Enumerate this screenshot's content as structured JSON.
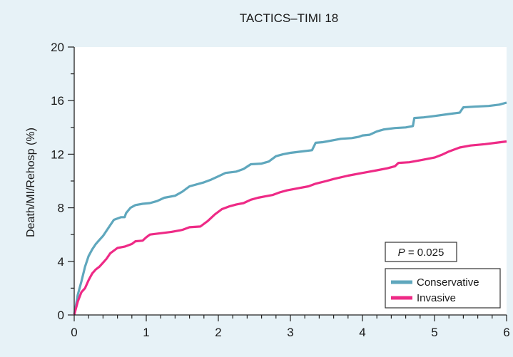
{
  "chart_data": {
    "type": "line",
    "title": "TACTICS–TIMI 18",
    "xlabel": "",
    "ylabel": "Death/MI/Rehosp (%)",
    "xlim": [
      0,
      6
    ],
    "ylim": [
      0,
      20
    ],
    "x_ticks": [
      0,
      1,
      2,
      3,
      4,
      5,
      6
    ],
    "y_ticks": [
      0,
      4,
      8,
      12,
      16,
      20
    ],
    "grid": false,
    "legend_position": "bottom-right",
    "annotation": {
      "italic": "P",
      "text": " = 0.025"
    },
    "series": [
      {
        "name": "Conservative",
        "color": "#5fa7bd",
        "points": [
          [
            0,
            0
          ],
          [
            0.05,
            1.5
          ],
          [
            0.1,
            2.5
          ],
          [
            0.15,
            3.6
          ],
          [
            0.2,
            4.4
          ],
          [
            0.25,
            4.9
          ],
          [
            0.3,
            5.3
          ],
          [
            0.35,
            5.6
          ],
          [
            0.4,
            5.9
          ],
          [
            0.45,
            6.3
          ],
          [
            0.5,
            6.7
          ],
          [
            0.55,
            7.1
          ],
          [
            0.65,
            7.3
          ],
          [
            0.7,
            7.3
          ],
          [
            0.72,
            7.6
          ],
          [
            0.78,
            8.0
          ],
          [
            0.85,
            8.2
          ],
          [
            0.95,
            8.3
          ],
          [
            1.05,
            8.35
          ],
          [
            1.15,
            8.5
          ],
          [
            1.25,
            8.75
          ],
          [
            1.4,
            8.9
          ],
          [
            1.5,
            9.2
          ],
          [
            1.6,
            9.6
          ],
          [
            1.8,
            9.9
          ],
          [
            1.9,
            10.1
          ],
          [
            2.0,
            10.35
          ],
          [
            2.1,
            10.6
          ],
          [
            2.25,
            10.7
          ],
          [
            2.35,
            10.9
          ],
          [
            2.45,
            11.25
          ],
          [
            2.6,
            11.3
          ],
          [
            2.7,
            11.45
          ],
          [
            2.8,
            11.85
          ],
          [
            2.9,
            12.0
          ],
          [
            3.0,
            12.1
          ],
          [
            3.15,
            12.2
          ],
          [
            3.3,
            12.3
          ],
          [
            3.35,
            12.85
          ],
          [
            3.45,
            12.9
          ],
          [
            3.6,
            13.05
          ],
          [
            3.7,
            13.15
          ],
          [
            3.85,
            13.2
          ],
          [
            3.95,
            13.3
          ],
          [
            4.0,
            13.4
          ],
          [
            4.1,
            13.45
          ],
          [
            4.2,
            13.7
          ],
          [
            4.3,
            13.85
          ],
          [
            4.45,
            13.95
          ],
          [
            4.6,
            14.0
          ],
          [
            4.7,
            14.1
          ],
          [
            4.72,
            14.7
          ],
          [
            4.85,
            14.75
          ],
          [
            5.0,
            14.85
          ],
          [
            5.2,
            15.0
          ],
          [
            5.35,
            15.1
          ],
          [
            5.4,
            15.5
          ],
          [
            5.55,
            15.55
          ],
          [
            5.75,
            15.6
          ],
          [
            5.9,
            15.7
          ],
          [
            6.0,
            15.85
          ]
        ]
      },
      {
        "name": "Invasive",
        "color": "#ee2a86",
        "points": [
          [
            0,
            0
          ],
          [
            0.05,
            1.0
          ],
          [
            0.1,
            1.7
          ],
          [
            0.15,
            2.0
          ],
          [
            0.2,
            2.6
          ],
          [
            0.25,
            3.1
          ],
          [
            0.3,
            3.4
          ],
          [
            0.35,
            3.6
          ],
          [
            0.4,
            3.9
          ],
          [
            0.45,
            4.2
          ],
          [
            0.5,
            4.6
          ],
          [
            0.6,
            5.0
          ],
          [
            0.7,
            5.1
          ],
          [
            0.8,
            5.3
          ],
          [
            0.85,
            5.5
          ],
          [
            0.95,
            5.55
          ],
          [
            1.0,
            5.8
          ],
          [
            1.05,
            6.0
          ],
          [
            1.2,
            6.1
          ],
          [
            1.35,
            6.2
          ],
          [
            1.5,
            6.35
          ],
          [
            1.6,
            6.55
          ],
          [
            1.75,
            6.6
          ],
          [
            1.85,
            7.0
          ],
          [
            1.95,
            7.5
          ],
          [
            2.05,
            7.9
          ],
          [
            2.15,
            8.1
          ],
          [
            2.25,
            8.25
          ],
          [
            2.35,
            8.35
          ],
          [
            2.45,
            8.6
          ],
          [
            2.55,
            8.75
          ],
          [
            2.65,
            8.85
          ],
          [
            2.75,
            8.95
          ],
          [
            2.85,
            9.15
          ],
          [
            2.95,
            9.3
          ],
          [
            3.1,
            9.45
          ],
          [
            3.25,
            9.6
          ],
          [
            3.35,
            9.8
          ],
          [
            3.5,
            10.0
          ],
          [
            3.6,
            10.15
          ],
          [
            3.8,
            10.4
          ],
          [
            4.0,
            10.6
          ],
          [
            4.2,
            10.8
          ],
          [
            4.35,
            10.95
          ],
          [
            4.45,
            11.1
          ],
          [
            4.5,
            11.35
          ],
          [
            4.65,
            11.4
          ],
          [
            4.8,
            11.55
          ],
          [
            5.0,
            11.75
          ],
          [
            5.1,
            11.95
          ],
          [
            5.2,
            12.2
          ],
          [
            5.35,
            12.5
          ],
          [
            5.5,
            12.65
          ],
          [
            5.7,
            12.75
          ],
          [
            5.85,
            12.85
          ],
          [
            6.0,
            12.95
          ]
        ]
      }
    ]
  }
}
